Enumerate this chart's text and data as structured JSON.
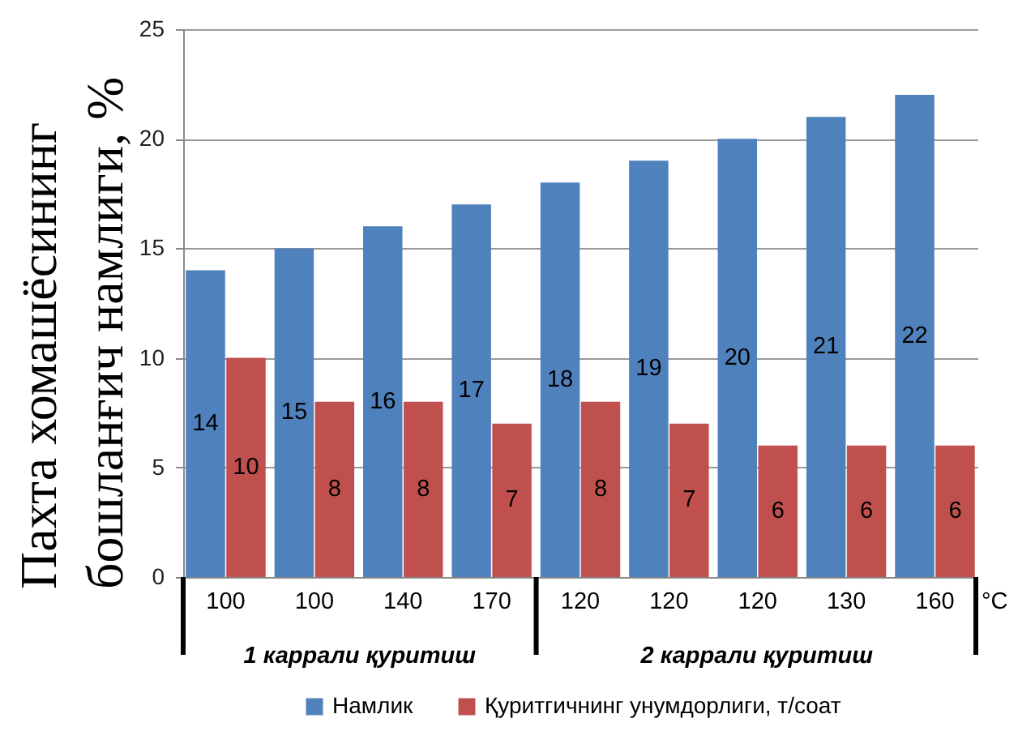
{
  "chart_data": {
    "type": "bar",
    "categories": [
      "100",
      "100",
      "140",
      "170",
      "120",
      "120",
      "120",
      "130",
      "160"
    ],
    "xlabel": "°C",
    "ylabel": "Пахта хомашёсининг бошланғич намлиги, %",
    "series": [
      {
        "name": "Намлик",
        "color": "#4f81bd",
        "values": [
          14,
          15,
          16,
          17,
          18,
          19,
          20,
          21,
          22
        ]
      },
      {
        "name": "Қуритгичнинг унумдорлиги, т/соат",
        "color": "#c0504d",
        "values": [
          10,
          8,
          8,
          7,
          8,
          7,
          6,
          6,
          6
        ]
      }
    ],
    "ylim": [
      0,
      25
    ],
    "yticks": [
      0,
      5,
      10,
      15,
      20,
      25
    ],
    "grid": "y",
    "legend": "bottom",
    "data_labels": true,
    "annotations": [
      "1 каррали қуритиш",
      "2 каррали қуритиш"
    ]
  }
}
